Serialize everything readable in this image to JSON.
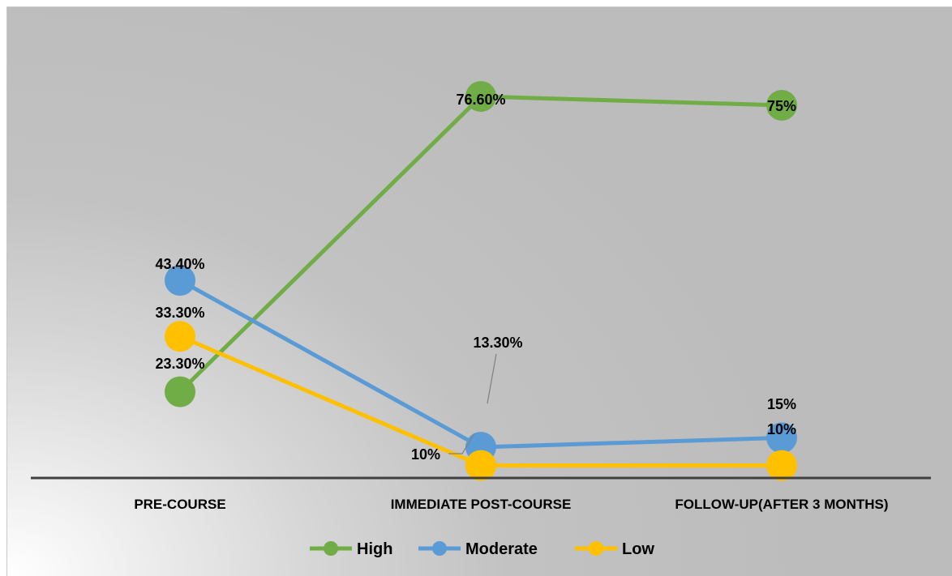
{
  "chart_data": {
    "type": "line",
    "categories": [
      "PRE-COURSE",
      "IMMEDIATE POST-COURSE",
      "FOLLOW-UP(AFTER 3 MONTHS)"
    ],
    "ylim": [
      0,
      100
    ],
    "grid": false,
    "legend": "bottom",
    "series": [
      {
        "name": "High",
        "color": "#70ad47",
        "values": [
          23.3,
          76.6,
          75
        ],
        "labels": [
          "23.30%",
          "76.60%",
          "75%"
        ]
      },
      {
        "name": "Moderate",
        "color": "#5b9bd5",
        "values": [
          43.4,
          13.3,
          15
        ],
        "labels": [
          "43.40%",
          "13.30%",
          "15%"
        ]
      },
      {
        "name": "Low",
        "color": "#ffc000",
        "values": [
          33.3,
          10,
          10
        ],
        "labels": [
          "33.30%",
          "10%",
          "10%"
        ]
      }
    ]
  }
}
